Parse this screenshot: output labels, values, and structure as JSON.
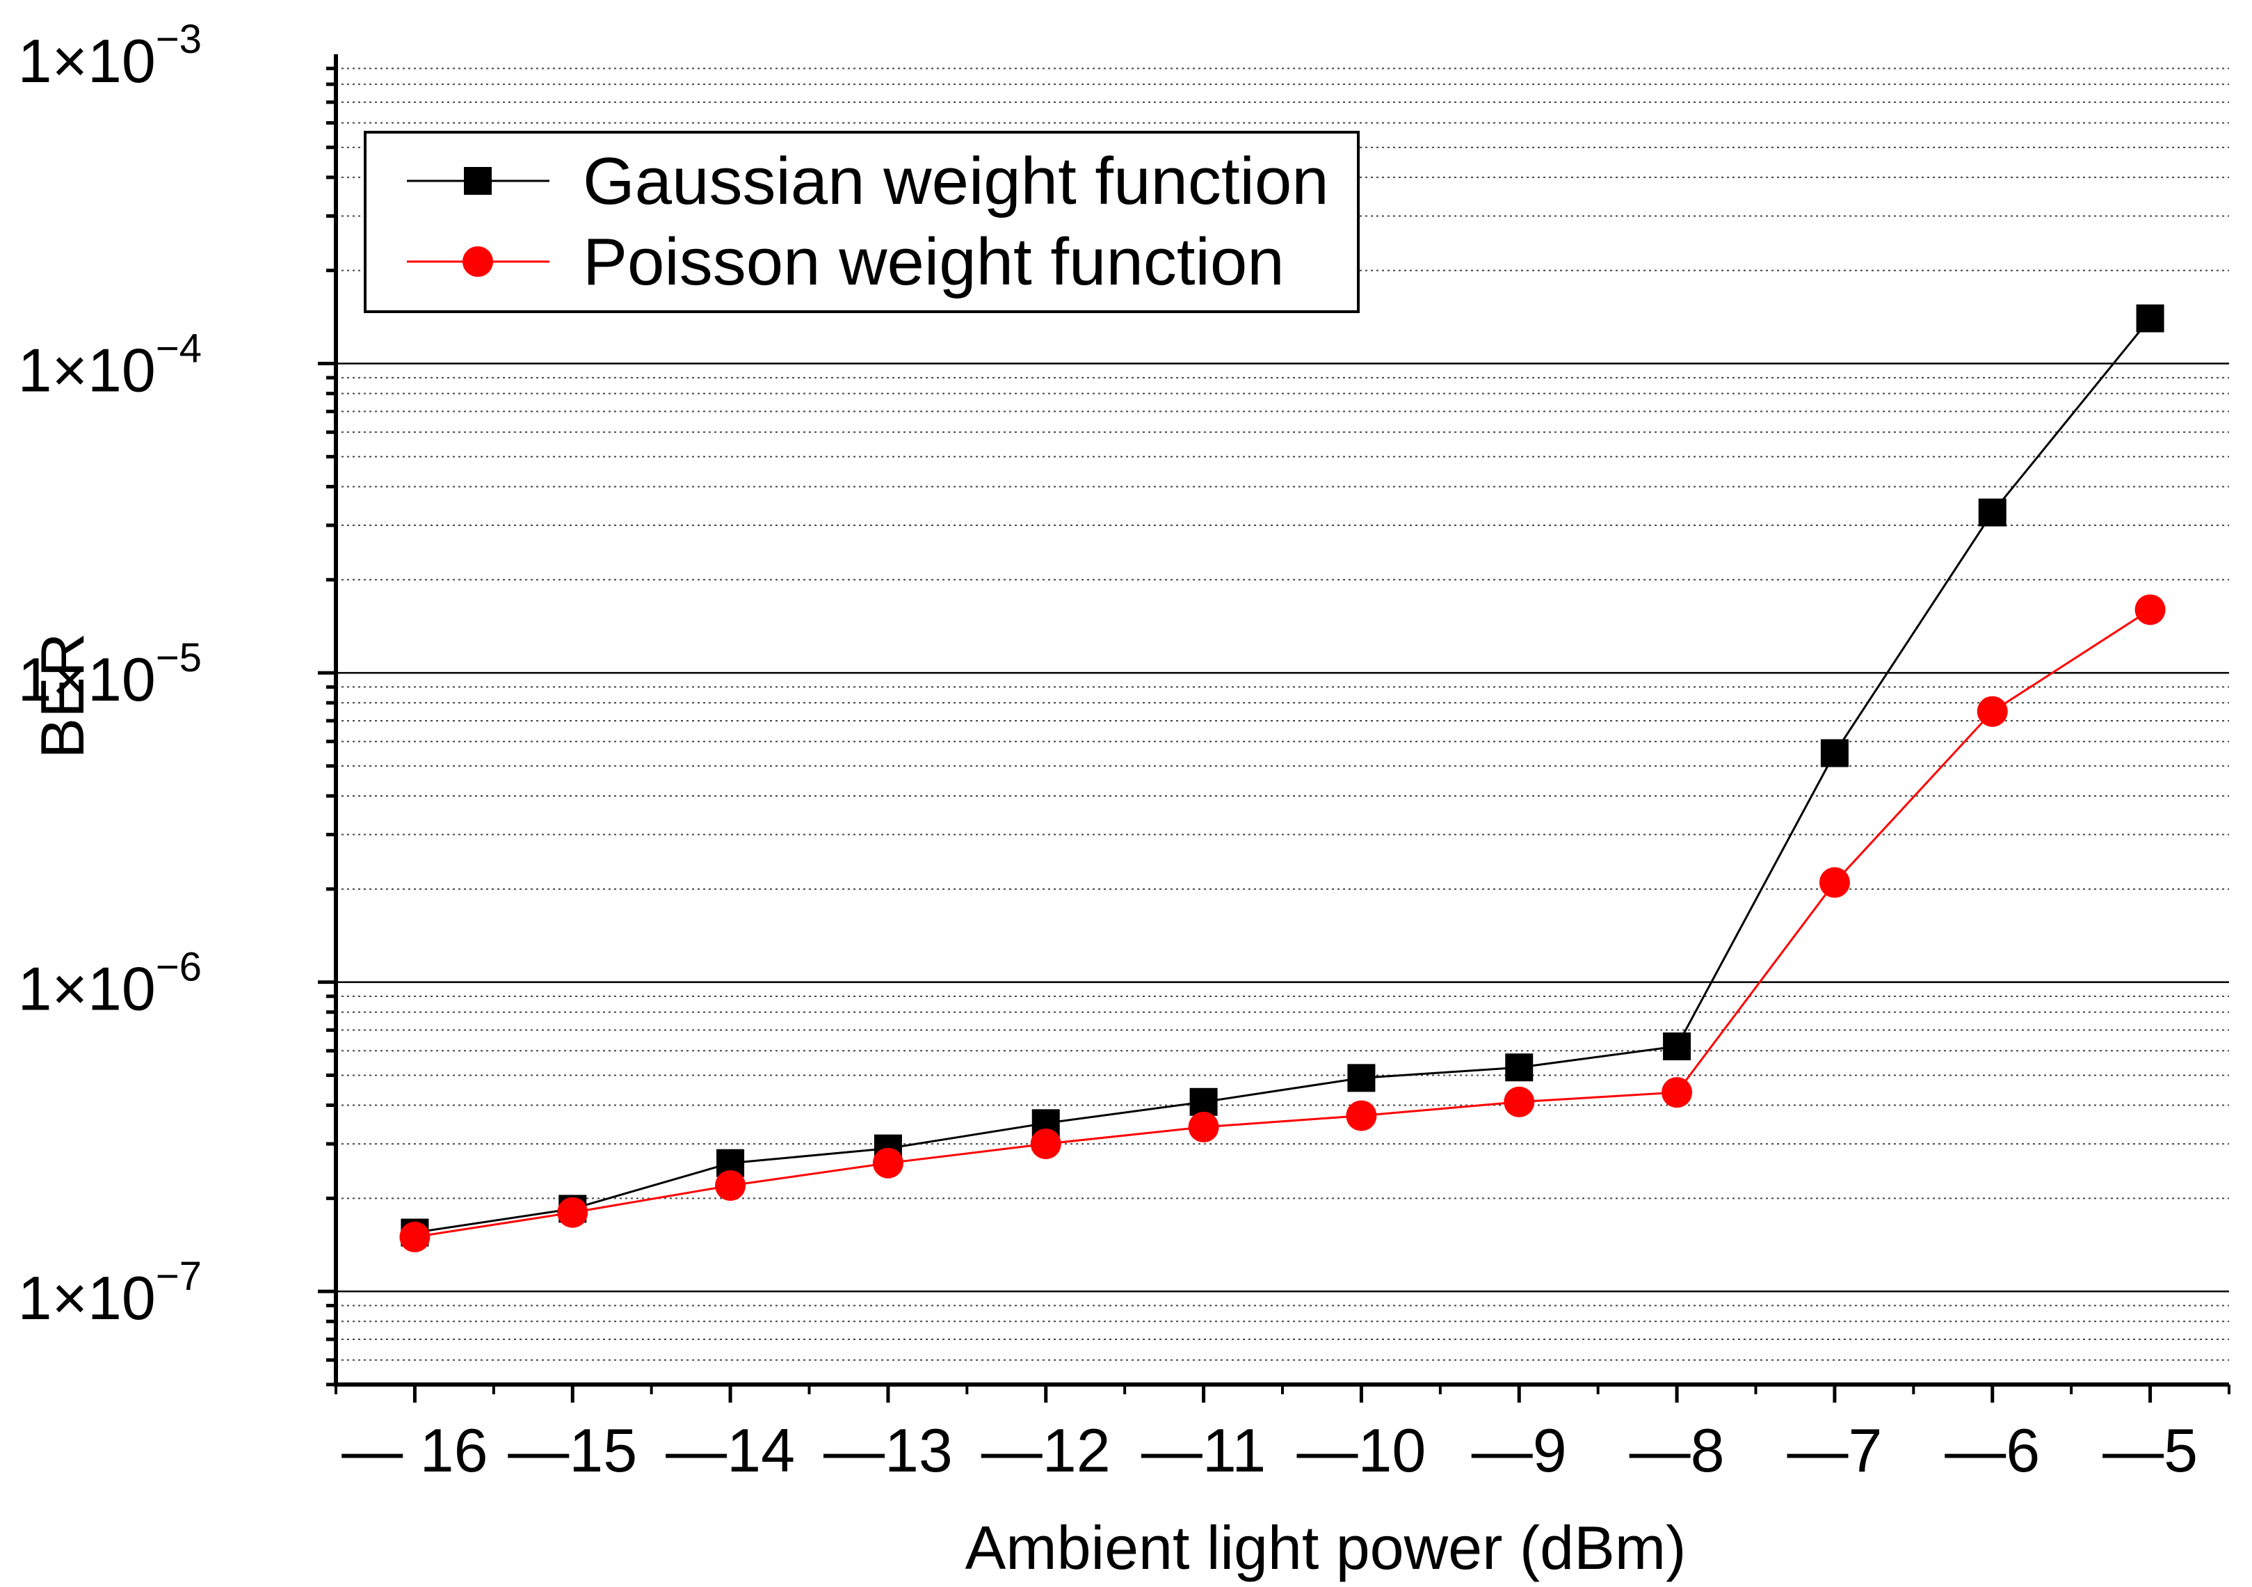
{
  "chart_data": {
    "type": "line",
    "y_scale": "log",
    "xlabel": "Ambient light power (dBm)",
    "ylabel": "BER",
    "xlim": [
      -16.5,
      -4.5
    ],
    "ylim": [
      5e-08,
      0.001
    ],
    "x_ticks": [
      -16,
      -15,
      -14,
      -13,
      -12,
      -11,
      -10,
      -9,
      -8,
      -7,
      -6,
      -5
    ],
    "x_tick_labels": [
      "— 16",
      "—15",
      "—14",
      "—13",
      "—12",
      "—11",
      "—10",
      "—9",
      "—8",
      "—7",
      "—6",
      "—5"
    ],
    "y_ticks": [
      {
        "value": 1e-07,
        "mantissa": "1×10",
        "exponent": "−7"
      },
      {
        "value": 1e-06,
        "mantissa": "1×10",
        "exponent": "−6"
      },
      {
        "value": 1e-05,
        "mantissa": "1×10",
        "exponent": "−5"
      },
      {
        "value": 0.0001,
        "mantissa": "1×10",
        "exponent": "−4"
      },
      {
        "value": 0.001,
        "mantissa": "1×10",
        "exponent": "−3"
      }
    ],
    "grid": {
      "major": true,
      "minor": true
    },
    "legend_position": "top-left",
    "x": [
      -16,
      -15,
      -14,
      -13,
      -12,
      -11,
      -10,
      -9,
      -8,
      -7,
      -6,
      -5
    ],
    "series": [
      {
        "name": "Gaussian weight function",
        "color": "#000000",
        "marker": "square",
        "values": [
          1.55e-07,
          1.85e-07,
          2.6e-07,
          2.9e-07,
          3.5e-07,
          4.1e-07,
          4.9e-07,
          5.3e-07,
          6.2e-07,
          5.5e-06,
          3.3e-05,
          0.00014
        ]
      },
      {
        "name": "Poisson weight function",
        "color": "#ff0000",
        "marker": "circle",
        "values": [
          1.5e-07,
          1.8e-07,
          2.2e-07,
          2.6e-07,
          3e-07,
          3.4e-07,
          3.7e-07,
          4.1e-07,
          4.4e-07,
          2.1e-06,
          7.5e-06,
          1.6e-05
        ]
      }
    ]
  }
}
